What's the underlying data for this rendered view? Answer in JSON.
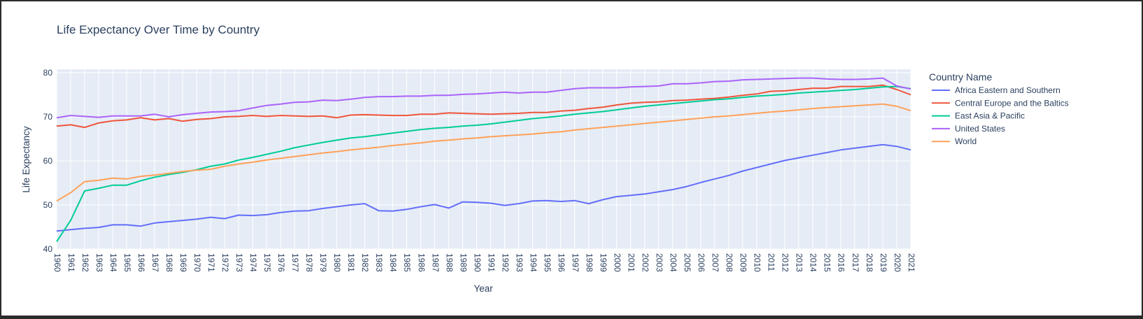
{
  "chart_data": {
    "type": "line",
    "title": "Life Expectancy Over Time by Country",
    "xlabel": "Year",
    "ylabel": "Life Expectancy",
    "legend_title": "Country Name",
    "legend_position": "right",
    "grid": true,
    "xlim": [
      1960,
      2021
    ],
    "ylim": [
      40,
      80.8
    ],
    "y_ticks": [
      40,
      50,
      60,
      70,
      80
    ],
    "x": [
      1960,
      1961,
      1962,
      1963,
      1964,
      1965,
      1966,
      1967,
      1968,
      1969,
      1970,
      1971,
      1972,
      1973,
      1974,
      1975,
      1976,
      1977,
      1978,
      1979,
      1980,
      1981,
      1982,
      1983,
      1984,
      1985,
      1986,
      1987,
      1988,
      1989,
      1990,
      1991,
      1992,
      1993,
      1994,
      1995,
      1996,
      1997,
      1998,
      1999,
      2000,
      2001,
      2002,
      2003,
      2004,
      2005,
      2006,
      2007,
      2008,
      2009,
      2010,
      2011,
      2012,
      2013,
      2014,
      2015,
      2016,
      2017,
      2018,
      2019,
      2020,
      2021
    ],
    "series": [
      {
        "name": "Africa Eastern and Southern",
        "color": "#636efa",
        "values": [
          44.1,
          44.4,
          44.7,
          44.9,
          45.5,
          45.5,
          45.2,
          45.9,
          46.2,
          46.5,
          46.8,
          47.2,
          46.9,
          47.7,
          47.6,
          47.8,
          48.3,
          48.6,
          48.7,
          49.2,
          49.6,
          50.0,
          50.3,
          48.7,
          48.6,
          49.0,
          49.6,
          50.1,
          49.3,
          50.7,
          50.6,
          50.4,
          49.9,
          50.3,
          50.9,
          51.0,
          50.8,
          51.0,
          50.3,
          51.2,
          51.9,
          52.2,
          52.5,
          53.0,
          53.5,
          54.2,
          55.1,
          55.9,
          56.7,
          57.7,
          58.5,
          59.3,
          60.1,
          60.7,
          61.3,
          61.9,
          62.5,
          62.9,
          63.3,
          63.7,
          63.3,
          62.5
        ]
      },
      {
        "name": "Central Europe and the Baltics",
        "color": "#ef553b",
        "values": [
          67.9,
          68.2,
          67.6,
          68.6,
          69.1,
          69.3,
          69.8,
          69.3,
          69.6,
          69.0,
          69.4,
          69.6,
          70.0,
          70.1,
          70.3,
          70.1,
          70.3,
          70.2,
          70.1,
          70.2,
          69.8,
          70.4,
          70.5,
          70.4,
          70.3,
          70.3,
          70.6,
          70.6,
          70.9,
          70.8,
          70.7,
          70.6,
          70.7,
          70.8,
          71.0,
          71.0,
          71.3,
          71.5,
          71.9,
          72.2,
          72.7,
          73.1,
          73.3,
          73.4,
          73.7,
          73.8,
          74.0,
          74.2,
          74.5,
          74.9,
          75.2,
          75.8,
          75.9,
          76.2,
          76.5,
          76.5,
          76.9,
          76.9,
          76.9,
          77.2,
          76.2,
          75.0
        ]
      },
      {
        "name": "East Asia & Pacific",
        "color": "#00cc96",
        "values": [
          41.7,
          46.5,
          53.2,
          53.8,
          54.5,
          54.5,
          55.5,
          56.3,
          56.9,
          57.4,
          58.0,
          58.8,
          59.3,
          60.2,
          60.8,
          61.5,
          62.2,
          63.0,
          63.6,
          64.2,
          64.7,
          65.2,
          65.5,
          65.9,
          66.3,
          66.7,
          67.1,
          67.4,
          67.6,
          67.9,
          68.1,
          68.4,
          68.8,
          69.2,
          69.6,
          69.9,
          70.2,
          70.6,
          70.9,
          71.2,
          71.6,
          72.0,
          72.4,
          72.7,
          73.0,
          73.3,
          73.6,
          73.9,
          74.1,
          74.4,
          74.7,
          74.9,
          75.1,
          75.4,
          75.6,
          75.8,
          76.0,
          76.2,
          76.5,
          76.8,
          76.9,
          76.4
        ]
      },
      {
        "name": "United States",
        "color": "#ab63fa",
        "values": [
          69.8,
          70.3,
          70.1,
          69.9,
          70.2,
          70.2,
          70.2,
          70.6,
          70.0,
          70.5,
          70.8,
          71.1,
          71.2,
          71.4,
          72.0,
          72.6,
          72.9,
          73.3,
          73.4,
          73.8,
          73.7,
          74.0,
          74.4,
          74.6,
          74.6,
          74.7,
          74.7,
          74.9,
          74.9,
          75.1,
          75.2,
          75.4,
          75.6,
          75.4,
          75.6,
          75.6,
          76.0,
          76.4,
          76.6,
          76.6,
          76.6,
          76.8,
          76.9,
          77.0,
          77.5,
          77.5,
          77.7,
          78.0,
          78.1,
          78.4,
          78.5,
          78.6,
          78.7,
          78.8,
          78.8,
          78.6,
          78.5,
          78.5,
          78.6,
          78.8,
          77.0,
          76.3
        ]
      },
      {
        "name": "World",
        "color": "#ffa15a",
        "values": [
          50.9,
          52.8,
          55.3,
          55.6,
          56.1,
          55.9,
          56.5,
          56.8,
          57.2,
          57.6,
          57.9,
          58.1,
          58.8,
          59.3,
          59.7,
          60.2,
          60.6,
          61.0,
          61.4,
          61.8,
          62.1,
          62.5,
          62.8,
          63.1,
          63.5,
          63.8,
          64.1,
          64.5,
          64.7,
          65.0,
          65.2,
          65.5,
          65.7,
          65.9,
          66.1,
          66.4,
          66.6,
          67.0,
          67.3,
          67.6,
          67.9,
          68.2,
          68.5,
          68.8,
          69.1,
          69.4,
          69.7,
          70.0,
          70.2,
          70.5,
          70.8,
          71.1,
          71.3,
          71.6,
          71.9,
          72.1,
          72.3,
          72.5,
          72.7,
          72.9,
          72.4,
          71.4
        ]
      }
    ]
  }
}
